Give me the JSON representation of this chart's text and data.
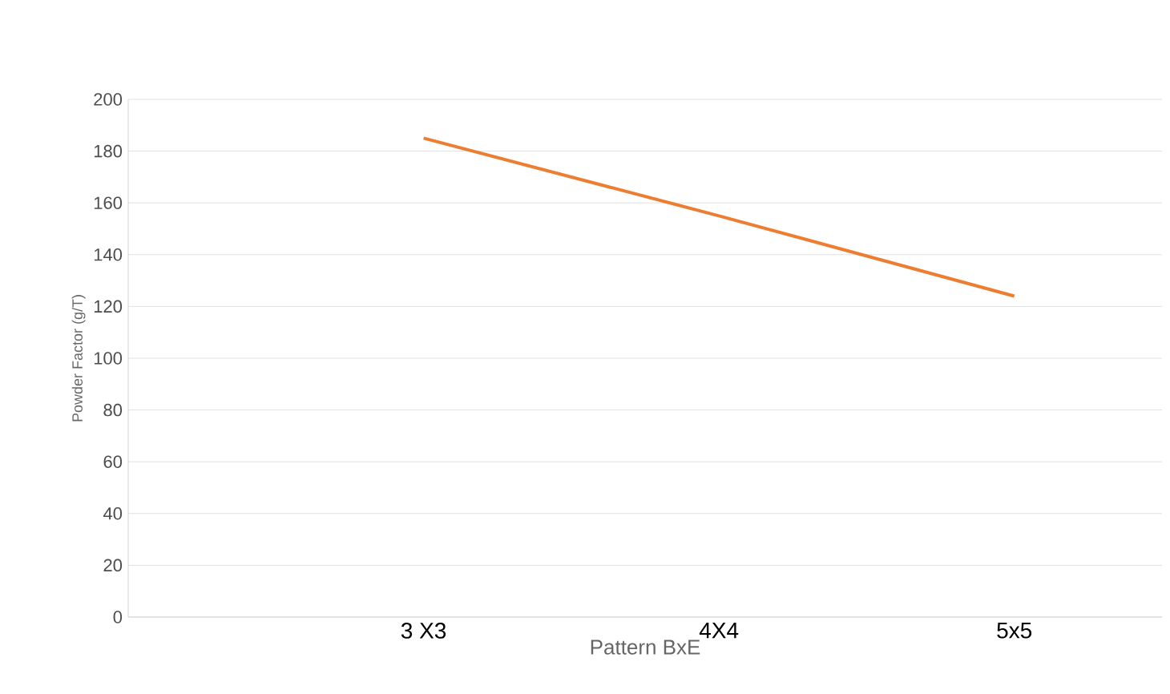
{
  "chart_data": {
    "type": "line",
    "xlabel": "Pattern BxE",
    "ylabel": "Powder Factor (g/T)",
    "categories": [
      null,
      "3 X3",
      "4X4",
      "5x5"
    ],
    "values": [
      null,
      185,
      155,
      124
    ],
    "color": "#ed7d31",
    "ylim": [
      0,
      200
    ],
    "yticks": [
      0,
      20,
      40,
      60,
      80,
      100,
      120,
      140,
      160,
      180,
      200
    ],
    "grid": "y",
    "marker": "none",
    "line_style": "solid"
  }
}
